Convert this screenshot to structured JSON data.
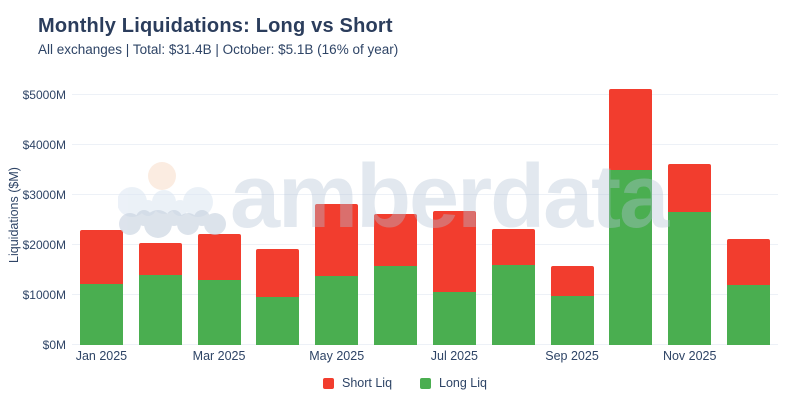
{
  "header": {
    "title": "Monthly Liquidations: Long vs Short",
    "subtitle": "All exchanges | Total: $31.4B | October: $5.1B (16% of year)"
  },
  "watermark": {
    "text": "amberdata"
  },
  "colors": {
    "short_liq": "#f23d2e",
    "long_liq": "#4aae50",
    "text_navy": "#2e4466",
    "gridline": "#edf1f7",
    "watermark_gray": "#e9edf3",
    "watermark_peach": "#fbe7da"
  },
  "chart_data": {
    "type": "bar",
    "stacked": true,
    "title": "Monthly Liquidations: Long vs Short",
    "subtitle": "All exchanges | Total: $31.4B | October: $5.1B (16% of year)",
    "categories": [
      "Jan 2025",
      "Feb 2025",
      "Mar 2025",
      "Apr 2025",
      "May 2025",
      "Jun 2025",
      "Jul 2025",
      "Aug 2025",
      "Sep 2025",
      "Oct 2025",
      "Nov 2025",
      "Dec 2025"
    ],
    "x_tick_labels": [
      "Jan 2025",
      "Mar 2025",
      "May 2025",
      "Jul 2025",
      "Sep 2025",
      "Nov 2025"
    ],
    "series": [
      {
        "name": "Long Liq",
        "color": "#4aae50",
        "values": [
          1230,
          1400,
          1300,
          960,
          1390,
          1590,
          1070,
          1610,
          990,
          3510,
          2670,
          1210
        ]
      },
      {
        "name": "Short Liq",
        "color": "#f23d2e",
        "values": [
          1070,
          650,
          930,
          960,
          1440,
          1030,
          1610,
          720,
          590,
          1620,
          960,
          920
        ]
      }
    ],
    "totals": [
      2300,
      2050,
      2230,
      1920,
      2830,
      2620,
      2680,
      2330,
      1580,
      5130,
      3630,
      2130
    ],
    "xlabel": "",
    "ylabel": "Liquidations ($M)",
    "y_ticks": [
      {
        "label": "$0M",
        "value": 0
      },
      {
        "label": "$1000M",
        "value": 1000
      },
      {
        "label": "$2000M",
        "value": 2000
      },
      {
        "label": "$3000M",
        "value": 3000
      },
      {
        "label": "$4000M",
        "value": 4000
      },
      {
        "label": "$5000M",
        "value": 5000
      }
    ],
    "ylim": [
      0,
      5200
    ],
    "grid": true,
    "legend_position": "bottom-center"
  },
  "legend": {
    "items": [
      {
        "label": "Short Liq",
        "color": "#f23d2e"
      },
      {
        "label": "Long Liq",
        "color": "#4aae50"
      }
    ]
  }
}
